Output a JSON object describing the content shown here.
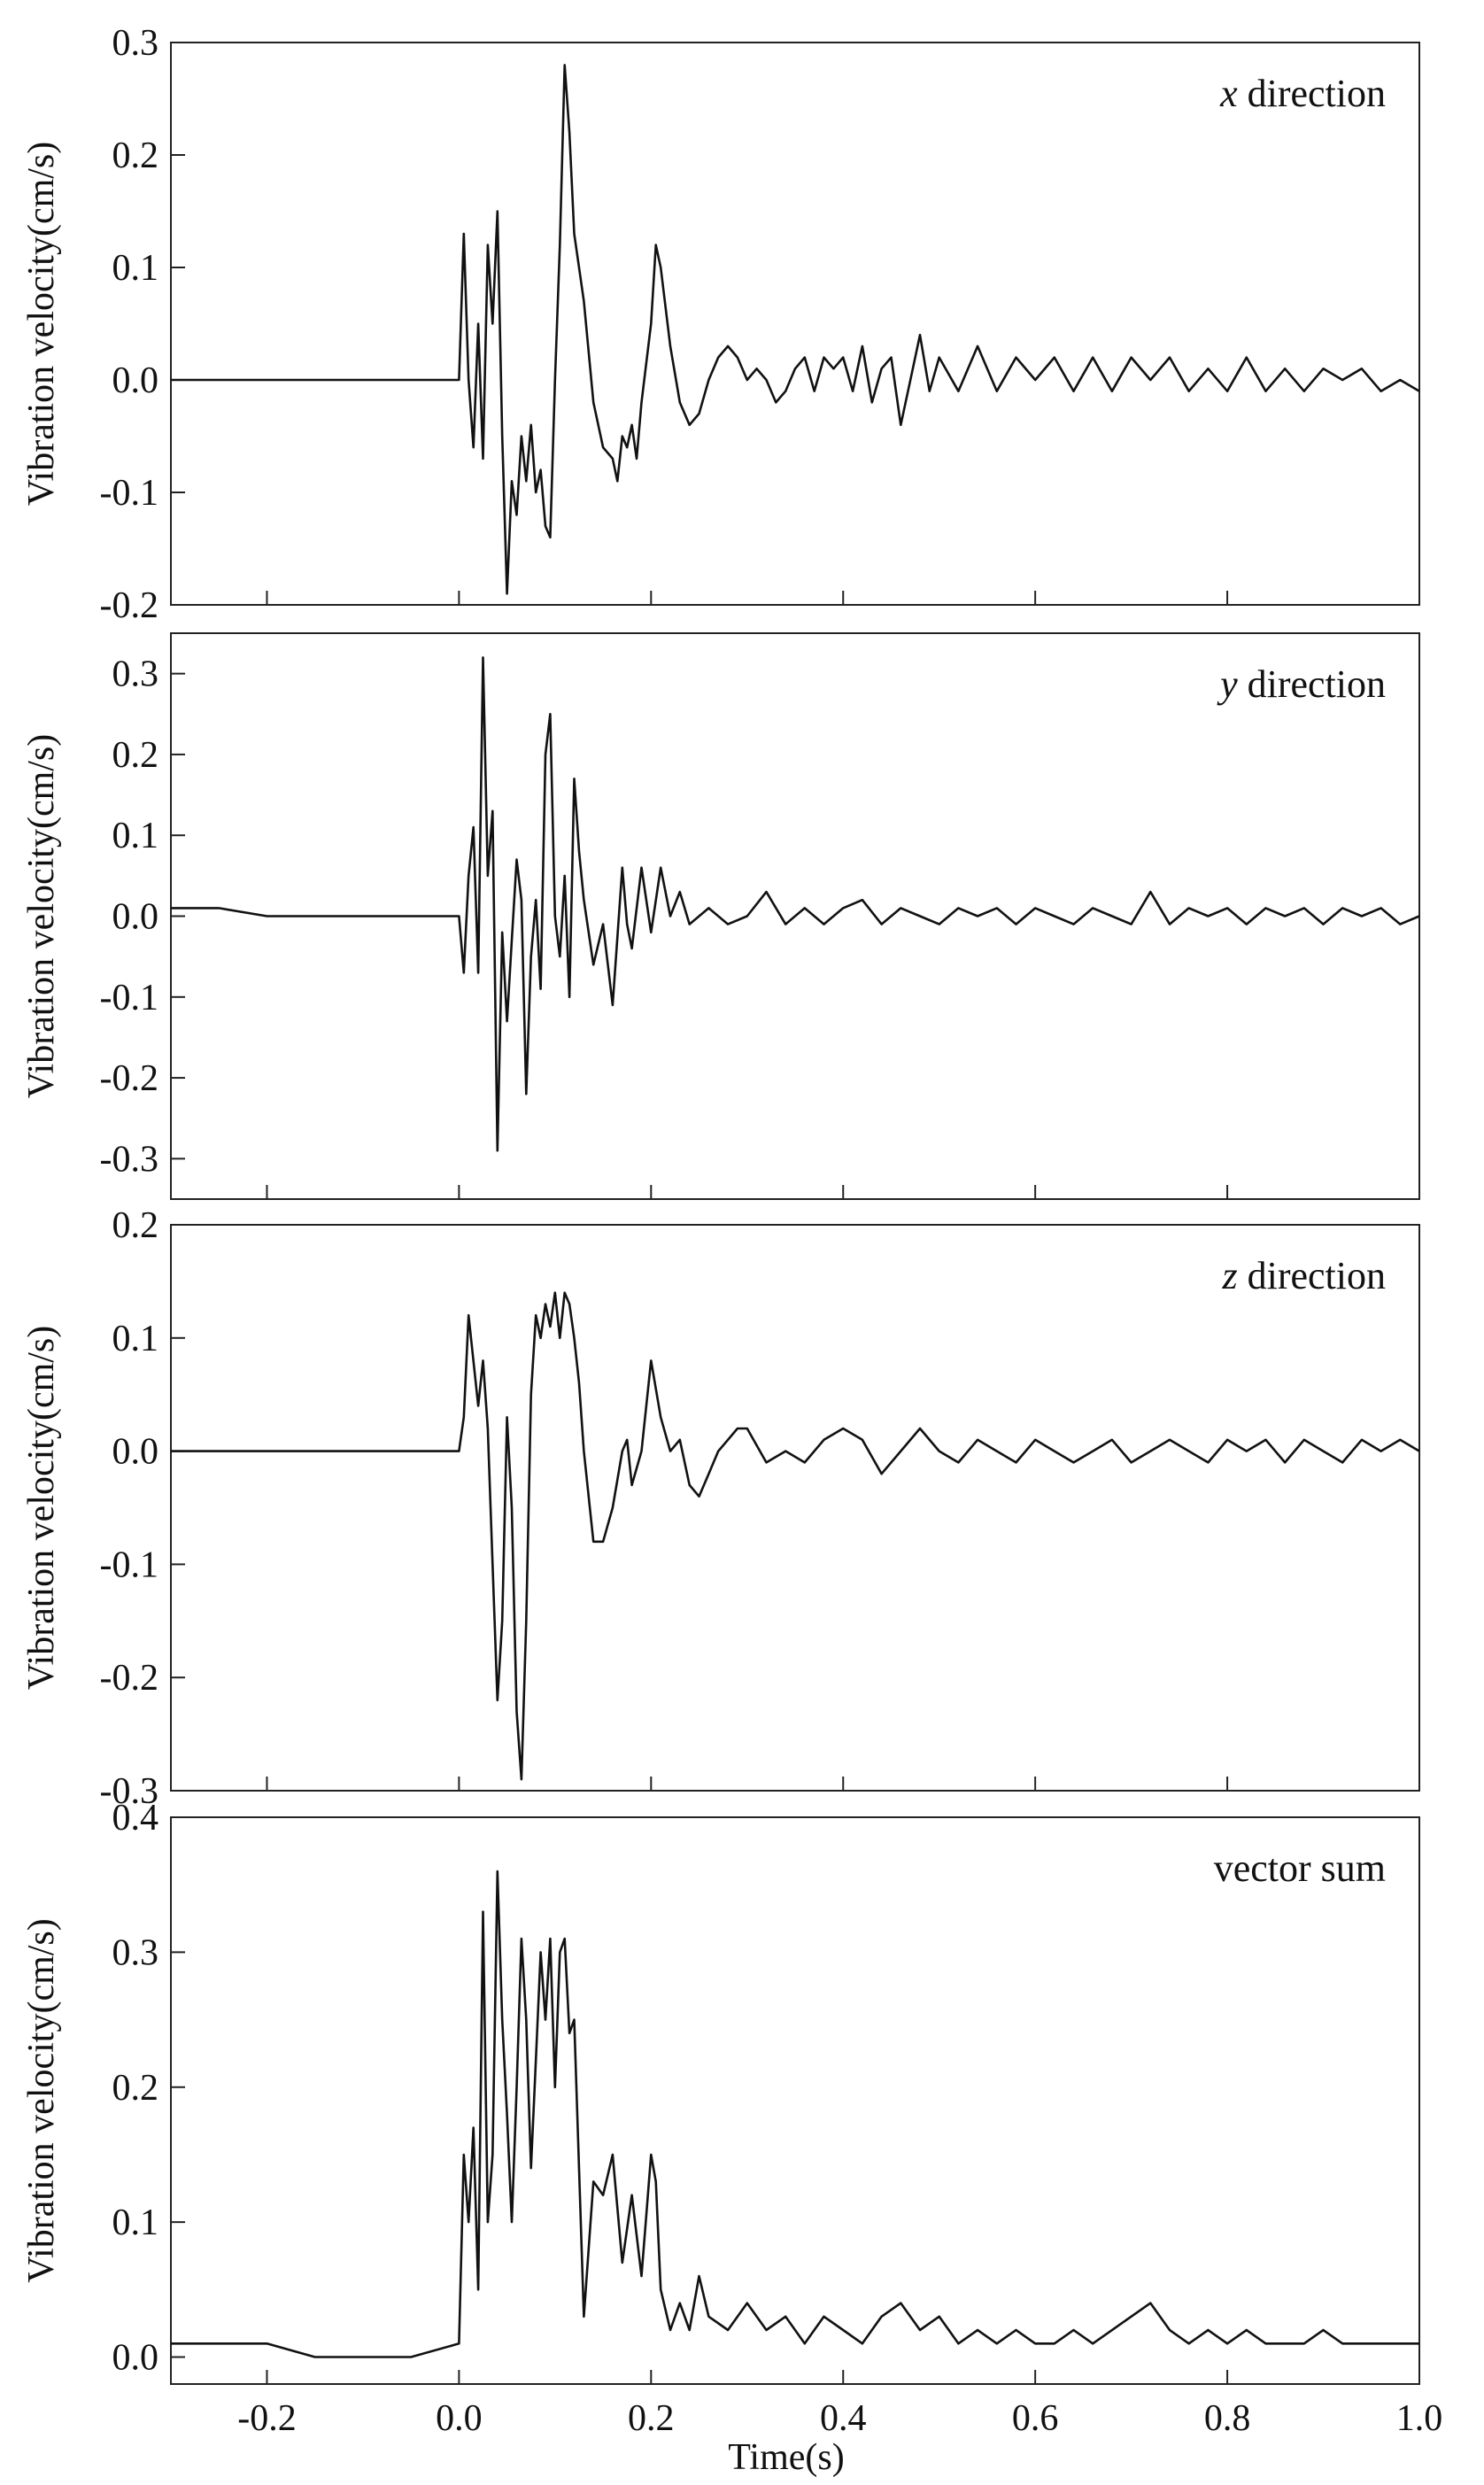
{
  "chart_data": [
    {
      "type": "line",
      "annotation": "x direction",
      "annotation_italic": "x",
      "annotation_rest": " direction",
      "ylabel": "Vibration velocity(cm/s)",
      "ylim": [
        -0.2,
        0.3
      ],
      "yticks": [
        -0.2,
        -0.1,
        0.0,
        0.1,
        0.2,
        0.3
      ],
      "ytick_labels": [
        "-0.2",
        "-0.1",
        "0.0",
        "0.1",
        "0.2",
        "0.3"
      ],
      "xlim": [
        -0.3,
        1.0
      ],
      "x": [
        -0.3,
        -0.25,
        -0.2,
        -0.15,
        -0.1,
        -0.05,
        0.0,
        0.005,
        0.01,
        0.015,
        0.02,
        0.025,
        0.03,
        0.035,
        0.04,
        0.045,
        0.05,
        0.055,
        0.06,
        0.065,
        0.07,
        0.075,
        0.08,
        0.085,
        0.09,
        0.095,
        0.1,
        0.105,
        0.11,
        0.115,
        0.12,
        0.13,
        0.14,
        0.15,
        0.16,
        0.165,
        0.17,
        0.175,
        0.18,
        0.185,
        0.19,
        0.2,
        0.205,
        0.21,
        0.22,
        0.23,
        0.24,
        0.25,
        0.26,
        0.27,
        0.28,
        0.29,
        0.3,
        0.31,
        0.32,
        0.33,
        0.34,
        0.35,
        0.36,
        0.37,
        0.38,
        0.39,
        0.4,
        0.41,
        0.42,
        0.43,
        0.44,
        0.45,
        0.46,
        0.47,
        0.48,
        0.49,
        0.5,
        0.52,
        0.54,
        0.56,
        0.58,
        0.6,
        0.62,
        0.64,
        0.66,
        0.68,
        0.7,
        0.72,
        0.74,
        0.76,
        0.78,
        0.8,
        0.82,
        0.84,
        0.86,
        0.88,
        0.9,
        0.92,
        0.94,
        0.96,
        0.98,
        1.0
      ],
      "y": [
        0.0,
        0.0,
        0.0,
        0.0,
        0.0,
        0.0,
        0.0,
        0.13,
        0.0,
        -0.06,
        0.05,
        -0.07,
        0.12,
        0.05,
        0.15,
        -0.05,
        -0.19,
        -0.09,
        -0.12,
        -0.05,
        -0.09,
        -0.04,
        -0.1,
        -0.08,
        -0.13,
        -0.14,
        0.0,
        0.12,
        0.28,
        0.22,
        0.13,
        0.07,
        -0.02,
        -0.06,
        -0.07,
        -0.09,
        -0.05,
        -0.06,
        -0.04,
        -0.07,
        -0.02,
        0.05,
        0.12,
        0.1,
        0.03,
        -0.02,
        -0.04,
        -0.03,
        0.0,
        0.02,
        0.03,
        0.02,
        0.0,
        0.01,
        0.0,
        -0.02,
        -0.01,
        0.01,
        0.02,
        -0.01,
        0.02,
        0.01,
        0.02,
        -0.01,
        0.03,
        -0.02,
        0.01,
        0.02,
        -0.04,
        0.0,
        0.04,
        -0.01,
        0.02,
        -0.01,
        0.03,
        -0.01,
        0.02,
        0.0,
        0.02,
        -0.01,
        0.02,
        -0.01,
        0.02,
        0.0,
        0.02,
        -0.01,
        0.01,
        -0.01,
        0.02,
        -0.01,
        0.01,
        -0.01,
        0.01,
        0.0,
        0.01,
        -0.01,
        0.0,
        -0.01
      ]
    },
    {
      "type": "line",
      "annotation": "y direction",
      "annotation_italic": "y",
      "annotation_rest": " direction",
      "ylabel": "Vibration velocity(cm/s)",
      "ylim": [
        -0.35,
        0.35
      ],
      "yticks": [
        -0.3,
        -0.2,
        -0.1,
        0.0,
        0.1,
        0.2,
        0.3
      ],
      "ytick_labels": [
        "-0.3",
        "-0.2",
        "-0.1",
        "0.0",
        "0.1",
        "0.2",
        "0.3"
      ],
      "xlim": [
        -0.3,
        1.0
      ],
      "x": [
        -0.3,
        -0.25,
        -0.2,
        -0.15,
        -0.1,
        -0.05,
        0.0,
        0.005,
        0.01,
        0.015,
        0.02,
        0.025,
        0.03,
        0.035,
        0.04,
        0.045,
        0.05,
        0.055,
        0.06,
        0.065,
        0.07,
        0.075,
        0.08,
        0.085,
        0.09,
        0.095,
        0.1,
        0.105,
        0.11,
        0.115,
        0.12,
        0.125,
        0.13,
        0.14,
        0.15,
        0.16,
        0.17,
        0.175,
        0.18,
        0.19,
        0.2,
        0.21,
        0.22,
        0.23,
        0.24,
        0.26,
        0.28,
        0.3,
        0.32,
        0.34,
        0.36,
        0.38,
        0.4,
        0.42,
        0.44,
        0.46,
        0.48,
        0.5,
        0.52,
        0.54,
        0.56,
        0.58,
        0.6,
        0.62,
        0.64,
        0.66,
        0.68,
        0.7,
        0.72,
        0.74,
        0.76,
        0.78,
        0.8,
        0.82,
        0.84,
        0.86,
        0.88,
        0.9,
        0.92,
        0.94,
        0.96,
        0.98,
        1.0
      ],
      "y": [
        0.01,
        0.01,
        0.0,
        0.0,
        0.0,
        0.0,
        0.0,
        -0.07,
        0.05,
        0.11,
        -0.07,
        0.32,
        0.05,
        0.13,
        -0.29,
        -0.02,
        -0.13,
        -0.03,
        0.07,
        0.02,
        -0.22,
        -0.05,
        0.02,
        -0.09,
        0.2,
        0.25,
        0.0,
        -0.05,
        0.05,
        -0.1,
        0.17,
        0.08,
        0.02,
        -0.06,
        -0.01,
        -0.11,
        0.06,
        -0.01,
        -0.04,
        0.06,
        -0.02,
        0.06,
        0.0,
        0.03,
        -0.01,
        0.01,
        -0.01,
        0.0,
        0.03,
        -0.01,
        0.01,
        -0.01,
        0.01,
        0.02,
        -0.01,
        0.01,
        0.0,
        -0.01,
        0.01,
        0.0,
        0.01,
        -0.01,
        0.01,
        0.0,
        -0.01,
        0.01,
        0.0,
        -0.01,
        0.03,
        -0.01,
        0.01,
        0.0,
        0.01,
        -0.01,
        0.01,
        0.0,
        0.01,
        -0.01,
        0.01,
        0.0,
        0.01,
        -0.01,
        0.0
      ]
    },
    {
      "type": "line",
      "annotation": "z direction",
      "annotation_italic": "z",
      "annotation_rest": " direction",
      "ylabel": "Vibration velocity(cm/s)",
      "ylim": [
        -0.3,
        0.2
      ],
      "yticks": [
        -0.3,
        -0.2,
        -0.1,
        0.0,
        0.1,
        0.2
      ],
      "ytick_labels": [
        "-0.3",
        "-0.2",
        "-0.1",
        "0.0",
        "0.1",
        "0.2"
      ],
      "xlim": [
        -0.3,
        1.0
      ],
      "x": [
        -0.3,
        -0.25,
        -0.2,
        -0.15,
        -0.1,
        -0.05,
        0.0,
        0.005,
        0.01,
        0.02,
        0.025,
        0.03,
        0.035,
        0.04,
        0.045,
        0.05,
        0.055,
        0.06,
        0.065,
        0.07,
        0.075,
        0.08,
        0.085,
        0.09,
        0.095,
        0.1,
        0.105,
        0.11,
        0.115,
        0.12,
        0.125,
        0.13,
        0.14,
        0.15,
        0.16,
        0.17,
        0.175,
        0.18,
        0.19,
        0.2,
        0.21,
        0.22,
        0.23,
        0.24,
        0.25,
        0.26,
        0.27,
        0.28,
        0.29,
        0.3,
        0.32,
        0.34,
        0.36,
        0.38,
        0.4,
        0.42,
        0.44,
        0.46,
        0.48,
        0.5,
        0.52,
        0.54,
        0.56,
        0.58,
        0.6,
        0.62,
        0.64,
        0.66,
        0.68,
        0.7,
        0.72,
        0.74,
        0.76,
        0.78,
        0.8,
        0.82,
        0.84,
        0.86,
        0.88,
        0.9,
        0.92,
        0.94,
        0.96,
        0.98,
        1.0
      ],
      "y": [
        0.0,
        0.0,
        0.0,
        0.0,
        0.0,
        0.0,
        0.0,
        0.03,
        0.12,
        0.04,
        0.08,
        0.02,
        -0.1,
        -0.22,
        -0.15,
        0.03,
        -0.05,
        -0.23,
        -0.29,
        -0.15,
        0.05,
        0.12,
        0.1,
        0.13,
        0.11,
        0.14,
        0.1,
        0.14,
        0.13,
        0.1,
        0.06,
        0.0,
        -0.08,
        -0.08,
        -0.05,
        0.0,
        0.01,
        -0.03,
        0.0,
        0.08,
        0.03,
        0.0,
        0.01,
        -0.03,
        -0.04,
        -0.02,
        0.0,
        0.01,
        0.02,
        0.02,
        -0.01,
        0.0,
        -0.01,
        0.01,
        0.02,
        0.01,
        -0.02,
        0.0,
        0.02,
        0.0,
        -0.01,
        0.01,
        0.0,
        -0.01,
        0.01,
        0.0,
        -0.01,
        0.0,
        0.01,
        -0.01,
        0.0,
        0.01,
        0.0,
        -0.01,
        0.01,
        0.0,
        0.01,
        -0.01,
        0.01,
        0.0,
        -0.01,
        0.01,
        0.0,
        0.01,
        0.0
      ]
    },
    {
      "type": "line",
      "annotation": "vector sum",
      "annotation_italic": "",
      "annotation_rest": "vector sum",
      "ylabel": "Vibration velocity(cm/s)",
      "xlabel": "Time(s)",
      "ylim": [
        -0.02,
        0.4
      ],
      "yticks": [
        0.0,
        0.1,
        0.2,
        0.3,
        0.4
      ],
      "ytick_labels": [
        "0.0",
        "0.1",
        "0.2",
        "0.3",
        "0.4"
      ],
      "xlim": [
        -0.3,
        1.0
      ],
      "xticks": [
        -0.2,
        0.0,
        0.2,
        0.4,
        0.6,
        0.8,
        1.0
      ],
      "xtick_labels": [
        "-0.2",
        "0.0",
        "0.2",
        "0.4",
        "0.6",
        "0.8",
        "1.0"
      ],
      "x": [
        -0.3,
        -0.25,
        -0.2,
        -0.15,
        -0.1,
        -0.05,
        0.0,
        0.005,
        0.01,
        0.015,
        0.02,
        0.025,
        0.03,
        0.035,
        0.04,
        0.045,
        0.05,
        0.055,
        0.06,
        0.065,
        0.07,
        0.075,
        0.08,
        0.085,
        0.09,
        0.095,
        0.1,
        0.105,
        0.11,
        0.115,
        0.12,
        0.13,
        0.14,
        0.15,
        0.16,
        0.17,
        0.18,
        0.19,
        0.2,
        0.205,
        0.21,
        0.22,
        0.23,
        0.24,
        0.25,
        0.26,
        0.28,
        0.3,
        0.32,
        0.34,
        0.36,
        0.38,
        0.4,
        0.42,
        0.44,
        0.46,
        0.48,
        0.5,
        0.52,
        0.54,
        0.56,
        0.58,
        0.6,
        0.62,
        0.64,
        0.66,
        0.68,
        0.7,
        0.72,
        0.74,
        0.76,
        0.78,
        0.8,
        0.82,
        0.84,
        0.86,
        0.88,
        0.9,
        0.92,
        0.94,
        0.96,
        0.98,
        1.0
      ],
      "y": [
        0.01,
        0.01,
        0.01,
        0.0,
        0.0,
        0.0,
        0.01,
        0.15,
        0.1,
        0.17,
        0.05,
        0.33,
        0.1,
        0.15,
        0.36,
        0.25,
        0.18,
        0.1,
        0.2,
        0.31,
        0.25,
        0.14,
        0.22,
        0.3,
        0.25,
        0.31,
        0.2,
        0.3,
        0.31,
        0.24,
        0.25,
        0.03,
        0.13,
        0.12,
        0.15,
        0.07,
        0.12,
        0.06,
        0.15,
        0.13,
        0.05,
        0.02,
        0.04,
        0.02,
        0.06,
        0.03,
        0.02,
        0.04,
        0.02,
        0.03,
        0.01,
        0.03,
        0.02,
        0.01,
        0.03,
        0.04,
        0.02,
        0.03,
        0.01,
        0.02,
        0.01,
        0.02,
        0.01,
        0.01,
        0.02,
        0.01,
        0.02,
        0.03,
        0.04,
        0.02,
        0.01,
        0.02,
        0.01,
        0.02,
        0.01,
        0.01,
        0.01,
        0.02,
        0.01,
        0.01,
        0.01,
        0.01,
        0.01
      ]
    }
  ]
}
